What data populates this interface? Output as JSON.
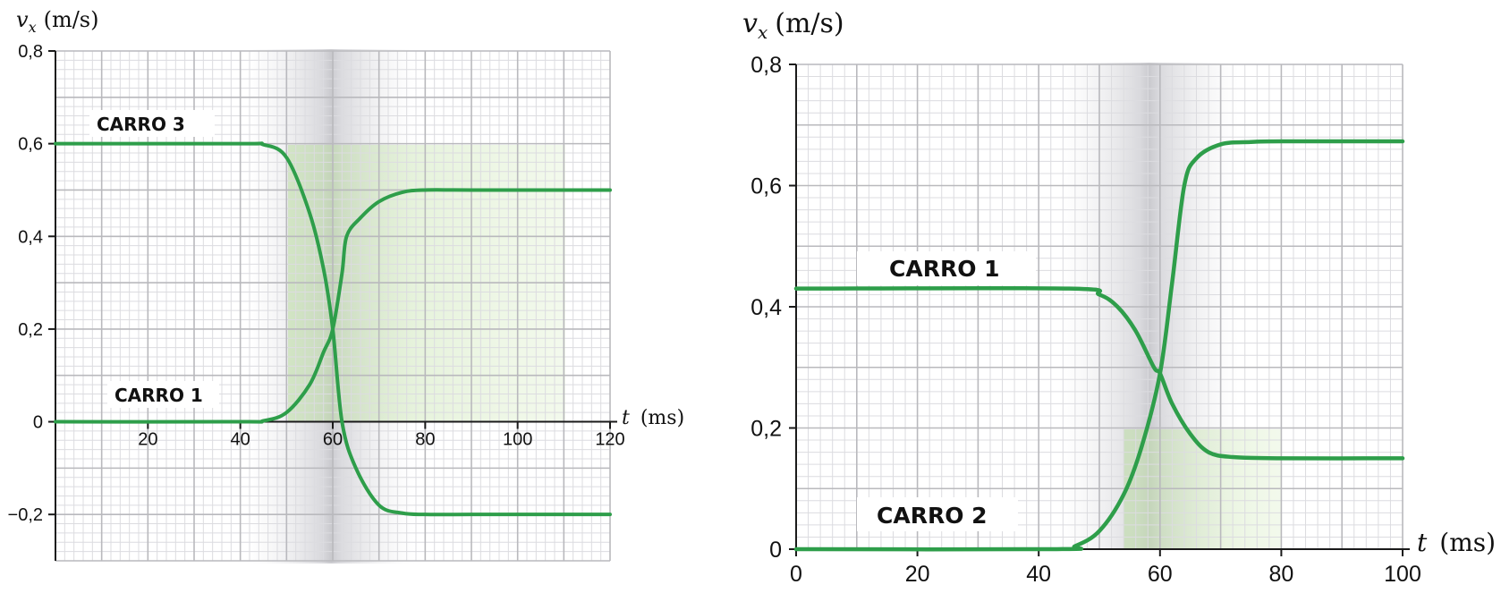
{
  "chart_data": [
    {
      "type": "line",
      "ylabel_var": "v",
      "ylabel_sub": "x",
      "ylabel_unit": "(m/s)",
      "xlabel_var": "t",
      "xlabel_unit": "(ms)",
      "xlim": [
        0,
        120
      ],
      "ylim": [
        -0.3,
        0.8
      ],
      "xticks": [
        20,
        40,
        60,
        80,
        100,
        120
      ],
      "xtick_labels": [
        "20",
        "40",
        "60",
        "80",
        "100",
        "120"
      ],
      "yticks": [
        -0.2,
        0,
        0.2,
        0.4,
        0.6,
        0.8
      ],
      "ytick_labels": [
        "−0,2",
        "0",
        "0,2",
        "0,4",
        "0,6",
        "0,8"
      ],
      "grid": true,
      "series": [
        {
          "name": "CARRO 3",
          "x": [
            0,
            40,
            45,
            50,
            55,
            58,
            60,
            62,
            65,
            70,
            75,
            80,
            90,
            120
          ],
          "y": [
            0.6,
            0.6,
            0.598,
            0.57,
            0.45,
            0.33,
            0.2,
            0.0,
            -0.1,
            -0.18,
            -0.197,
            -0.2,
            -0.2,
            -0.2
          ]
        },
        {
          "name": "CARRO 1",
          "x": [
            0,
            40,
            45,
            50,
            55,
            58,
            60,
            62,
            63,
            66,
            70,
            75,
            80,
            90,
            120
          ],
          "y": [
            0.0,
            0.0,
            0.002,
            0.02,
            0.08,
            0.15,
            0.2,
            0.32,
            0.4,
            0.44,
            0.475,
            0.495,
            0.5,
            0.5,
            0.5
          ]
        }
      ],
      "annotations": [
        "CARRO 3",
        "CARRO 1"
      ]
    },
    {
      "type": "line",
      "ylabel_var": "v",
      "ylabel_sub": "x",
      "ylabel_unit": "(m/s)",
      "xlabel_var": "t",
      "xlabel_unit": "(ms)",
      "xlim": [
        0,
        100
      ],
      "ylim": [
        0,
        0.8
      ],
      "xticks": [
        0,
        20,
        40,
        60,
        80,
        100
      ],
      "xtick_labels": [
        "0",
        "20",
        "40",
        "60",
        "80",
        "100"
      ],
      "yticks": [
        0,
        0.2,
        0.4,
        0.6,
        0.8
      ],
      "ytick_labels": [
        "0",
        "0,2",
        "0,4",
        "0,6",
        "0,8"
      ],
      "grid": true,
      "series": [
        {
          "name": "CARRO 1",
          "x": [
            0,
            45,
            50,
            53,
            56,
            59,
            60,
            62,
            65,
            68,
            72,
            80,
            100
          ],
          "y": [
            0.43,
            0.43,
            0.42,
            0.4,
            0.36,
            0.3,
            0.29,
            0.24,
            0.19,
            0.16,
            0.152,
            0.15,
            0.15
          ]
        },
        {
          "name": "CARRO 2",
          "x": [
            0,
            43,
            46,
            50,
            54,
            57,
            60,
            62,
            64,
            66,
            70,
            75,
            80,
            100
          ],
          "y": [
            0.0,
            0.0,
            0.005,
            0.03,
            0.09,
            0.17,
            0.29,
            0.44,
            0.6,
            0.645,
            0.668,
            0.672,
            0.673,
            0.673
          ]
        }
      ],
      "annotations": [
        "CARRO 1",
        "CARRO 2"
      ]
    }
  ]
}
